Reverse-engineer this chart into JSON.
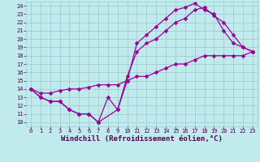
{
  "background_color": "#c0eaec",
  "grid_color": "#9ecdd4",
  "line_color": "#990099",
  "marker": "D",
  "markersize": 2.5,
  "linewidth": 0.9,
  "xlabel": "Windchill (Refroidissement éolien,°C)",
  "xlabel_fontsize": 6.5,
  "xlabel_color": "#550055",
  "tick_color": "#550055",
  "tick_fontsize": 5.0,
  "xlim": [
    -0.5,
    23.5
  ],
  "ylim": [
    9.5,
    24.5
  ],
  "xticks": [
    0,
    1,
    2,
    3,
    4,
    5,
    6,
    7,
    8,
    9,
    10,
    11,
    12,
    13,
    14,
    15,
    16,
    17,
    18,
    19,
    20,
    21,
    22,
    23
  ],
  "yticks": [
    10,
    11,
    12,
    13,
    14,
    15,
    16,
    17,
    18,
    19,
    20,
    21,
    22,
    23,
    24
  ],
  "line1_x": [
    0,
    1,
    2,
    3,
    4,
    5,
    6,
    7,
    8,
    9,
    10,
    11,
    12,
    13,
    14,
    15,
    16,
    17,
    18,
    19,
    20,
    21,
    22,
    23
  ],
  "line1_y": [
    14,
    13,
    12.5,
    12.5,
    11.5,
    11,
    11,
    10,
    13,
    11.5,
    15,
    19.5,
    20.5,
    21.5,
    22.5,
    23.5,
    23.8,
    24.3,
    23.5,
    23,
    21,
    19.5,
    19,
    18.5
  ],
  "line2_x": [
    0,
    1,
    2,
    3,
    4,
    5,
    6,
    7,
    9,
    10,
    11,
    12,
    13,
    14,
    15,
    16,
    17,
    18,
    19,
    20,
    21,
    22,
    23
  ],
  "line2_y": [
    14,
    13,
    12.5,
    12.5,
    11.5,
    11,
    11,
    10,
    11.5,
    15.5,
    18.5,
    19.5,
    20,
    21,
    22,
    22.5,
    23.5,
    23.8,
    22.8,
    22,
    20.5,
    19,
    18.5
  ],
  "line3_x": [
    0,
    1,
    2,
    3,
    4,
    5,
    6,
    7,
    8,
    9,
    10,
    11,
    12,
    13,
    14,
    15,
    16,
    17,
    18,
    19,
    20,
    21,
    22,
    23
  ],
  "line3_y": [
    14,
    13.5,
    13.5,
    13.8,
    14,
    14,
    14.2,
    14.5,
    14.5,
    14.5,
    15,
    15.5,
    15.5,
    16,
    16.5,
    17,
    17,
    17.5,
    18,
    18,
    18,
    18,
    18,
    18.5
  ]
}
